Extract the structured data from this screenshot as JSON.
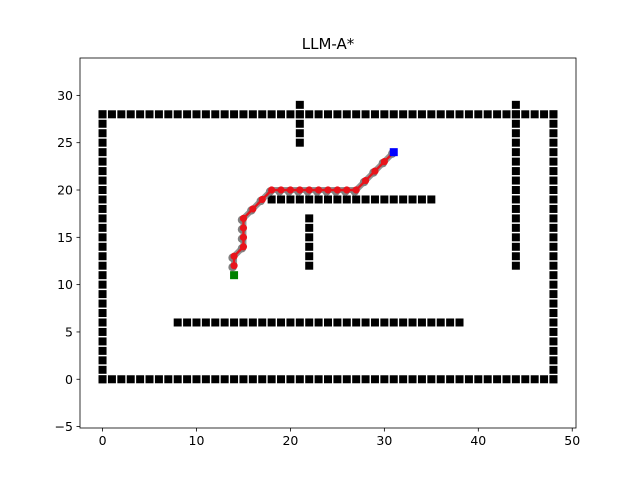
{
  "chart_data": {
    "type": "scatter",
    "title": "LLM-A*",
    "xlabel": "",
    "ylabel": "",
    "xlim": [
      -2.4,
      50.4
    ],
    "ylim": [
      -5.15,
      33.95
    ],
    "xticks": [
      0,
      10,
      20,
      30,
      40,
      50
    ],
    "yticks": [
      -5,
      0,
      5,
      10,
      15,
      20,
      25,
      30
    ],
    "grid": false,
    "legend": "none",
    "colors": {
      "obstacle": "#000000",
      "start": "#008000",
      "goal": "#0000ff",
      "path": "#e8141b",
      "explored": "#808080"
    },
    "obstacles": [
      {
        "segment": "bottom-wall",
        "from": [
          0,
          0
        ],
        "to": [
          48,
          0
        ]
      },
      {
        "segment": "top-wall",
        "from": [
          0,
          28
        ],
        "to": [
          48,
          28
        ]
      },
      {
        "segment": "left-wall",
        "from": [
          0,
          0
        ],
        "to": [
          0,
          28
        ]
      },
      {
        "segment": "right-wall",
        "from": [
          48,
          0
        ],
        "to": [
          48,
          28
        ]
      },
      {
        "segment": "lower-horizontal",
        "from": [
          8,
          6
        ],
        "to": [
          38,
          6
        ]
      },
      {
        "segment": "middle-horizontal",
        "from": [
          18,
          19
        ],
        "to": [
          35,
          19
        ]
      },
      {
        "segment": "middle-vertical",
        "from": [
          22,
          12
        ],
        "to": [
          22,
          17
        ]
      },
      {
        "segment": "upper-vertical",
        "from": [
          21,
          25
        ],
        "to": [
          21,
          29
        ]
      },
      {
        "segment": "right-vertical",
        "from": [
          44,
          12
        ],
        "to": [
          44,
          29
        ]
      }
    ],
    "start": [
      14,
      11
    ],
    "goal": [
      31,
      24
    ],
    "path": [
      [
        14,
        12
      ],
      [
        14,
        13
      ],
      [
        15,
        14
      ],
      [
        15,
        15
      ],
      [
        15,
        16
      ],
      [
        15,
        17
      ],
      [
        16,
        18
      ],
      [
        17,
        19
      ],
      [
        18,
        20
      ],
      [
        19,
        20
      ],
      [
        20,
        20
      ],
      [
        21,
        20
      ],
      [
        22,
        20
      ],
      [
        23,
        20
      ],
      [
        24,
        20
      ],
      [
        25,
        20
      ],
      [
        26,
        20
      ],
      [
        27,
        20
      ],
      [
        28,
        21
      ],
      [
        29,
        22
      ],
      [
        30,
        23
      ],
      [
        31,
        24
      ]
    ]
  }
}
